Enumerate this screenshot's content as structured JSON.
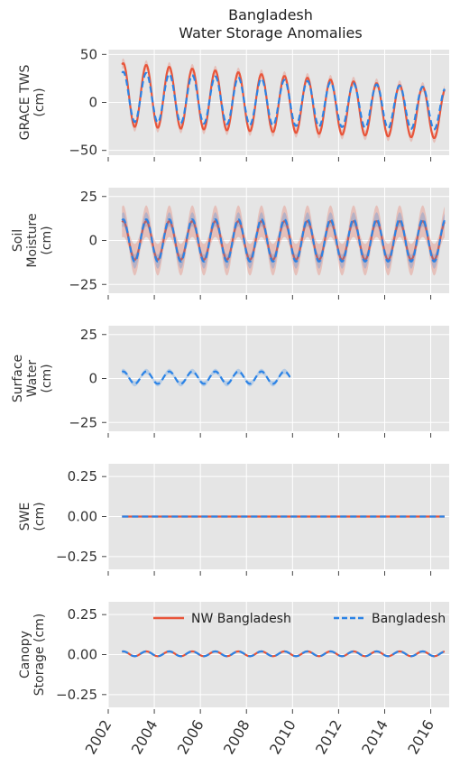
{
  "figure": {
    "title_line1": "Bangladesh",
    "title_line2": "Water Storage Anomalies"
  },
  "colors": {
    "nw": "#e8553a",
    "bd": "#2b83e6",
    "panel_bg": "#e5e5e5",
    "grid": "#ffffff"
  },
  "legend": {
    "items": [
      {
        "label": "NW Bangladesh",
        "style": "solid"
      },
      {
        "label": "Bangladesh",
        "style": "dashed"
      }
    ]
  },
  "chart_data": [
    {
      "type": "line",
      "ylabel": [
        "GRACE TWS",
        "(cm)"
      ],
      "ylim": [
        -55,
        55
      ],
      "yticks": [
        "50",
        "0",
        "−50"
      ],
      "ytick_values": [
        50,
        0,
        -50
      ],
      "xlim": [
        2002,
        2016.8
      ],
      "xticks": [
        "2002",
        "2004",
        "2006",
        "2008",
        "2010",
        "2012",
        "2014",
        "2016"
      ],
      "grid": true,
      "series": [
        {
          "name": "NW Bangladesh",
          "x_start": 2002.6,
          "x_end": 2016.6,
          "seasonal_amplitude": 33,
          "amplitude_trend_per_year": -0.5,
          "trend_cm_per_year": -1.4,
          "offset": 8,
          "uncertainty_band": 5
        },
        {
          "name": "Bangladesh",
          "x_start": 2002.6,
          "x_end": 2016.6,
          "seasonal_amplitude": 26,
          "amplitude_trend_per_year": -0.3,
          "trend_cm_per_year": -0.9,
          "offset": 6,
          "uncertainty_band": 0
        }
      ]
    },
    {
      "type": "line",
      "ylabel": [
        "Soil",
        "Moisture",
        "(cm)"
      ],
      "ylim": [
        -30,
        30
      ],
      "yticks": [
        "25",
        "0",
        "−25"
      ],
      "ytick_values": [
        25,
        0,
        -25
      ],
      "xlim": [
        2002,
        2016.8
      ],
      "xticks": [
        "2002",
        "2004",
        "2006",
        "2008",
        "2010",
        "2012",
        "2014",
        "2016"
      ],
      "grid": true,
      "series": [
        {
          "name": "NW Bangladesh",
          "x_start": 2002.6,
          "x_end": 2016.6,
          "seasonal_amplitude": 11,
          "amplitude_trend_per_year": 0,
          "trend_cm_per_year": 0,
          "offset": 0,
          "uncertainty_band": 9
        },
        {
          "name": "Bangladesh",
          "x_start": 2002.6,
          "x_end": 2016.6,
          "seasonal_amplitude": 12,
          "amplitude_trend_per_year": 0,
          "trend_cm_per_year": 0,
          "offset": 0,
          "uncertainty_band": 4
        }
      ]
    },
    {
      "type": "line",
      "ylabel": [
        "Surface",
        "Water",
        "(cm)"
      ],
      "ylim": [
        -30,
        30
      ],
      "yticks": [
        "25",
        "0",
        "−25"
      ],
      "ytick_values": [
        25,
        0,
        -25
      ],
      "xlim": [
        2002,
        2016.8
      ],
      "xticks": [
        "2002",
        "2004",
        "2006",
        "2008",
        "2010",
        "2012",
        "2014",
        "2016"
      ],
      "grid": true,
      "series": [
        {
          "name": "Bangladesh",
          "x_start": 2002.6,
          "x_end": 2009.9,
          "seasonal_amplitude": 3.5,
          "amplitude_trend_per_year": 0,
          "trend_cm_per_year": 0,
          "offset": 0.5,
          "uncertainty_band": 1.5
        }
      ]
    },
    {
      "type": "line",
      "ylabel": [
        "SWE",
        "(cm)"
      ],
      "ylim": [
        -0.33,
        0.33
      ],
      "yticks": [
        "0.25",
        "0.00",
        "−0.25"
      ],
      "ytick_values": [
        0.25,
        0,
        -0.25
      ],
      "xlim": [
        2002,
        2016.8
      ],
      "xticks": [
        "2002",
        "2004",
        "2006",
        "2008",
        "2010",
        "2012",
        "2014",
        "2016"
      ],
      "grid": true,
      "series": [
        {
          "name": "NW Bangladesh",
          "x_start": 2002.6,
          "x_end": 2016.6,
          "seasonal_amplitude": 0,
          "amplitude_trend_per_year": 0,
          "trend_cm_per_year": 0,
          "offset": 0,
          "uncertainty_band": 0
        },
        {
          "name": "Bangladesh",
          "x_start": 2002.6,
          "x_end": 2016.6,
          "seasonal_amplitude": 0,
          "amplitude_trend_per_year": 0,
          "trend_cm_per_year": 0,
          "offset": 0,
          "uncertainty_band": 0
        }
      ]
    },
    {
      "type": "line",
      "ylabel": [
        "Canopy",
        "Storage (cm)"
      ],
      "ylim": [
        -0.33,
        0.33
      ],
      "yticks": [
        "0.25",
        "0.00",
        "−0.25"
      ],
      "ytick_values": [
        0.25,
        0,
        -0.25
      ],
      "xlim": [
        2002,
        2016.8
      ],
      "xticks": [
        "2002",
        "2004",
        "2006",
        "2008",
        "2010",
        "2012",
        "2014",
        "2016"
      ],
      "grid": true,
      "legend": true,
      "series": [
        {
          "name": "NW Bangladesh",
          "x_start": 2002.6,
          "x_end": 2016.6,
          "seasonal_amplitude": 0.015,
          "amplitude_trend_per_year": 0,
          "trend_cm_per_year": 0,
          "offset": 0.005,
          "uncertainty_band": 0
        },
        {
          "name": "Bangladesh",
          "x_start": 2002.6,
          "x_end": 2016.6,
          "seasonal_amplitude": 0.015,
          "amplitude_trend_per_year": 0,
          "trend_cm_per_year": 0,
          "offset": 0.005,
          "uncertainty_band": 0
        }
      ]
    }
  ]
}
